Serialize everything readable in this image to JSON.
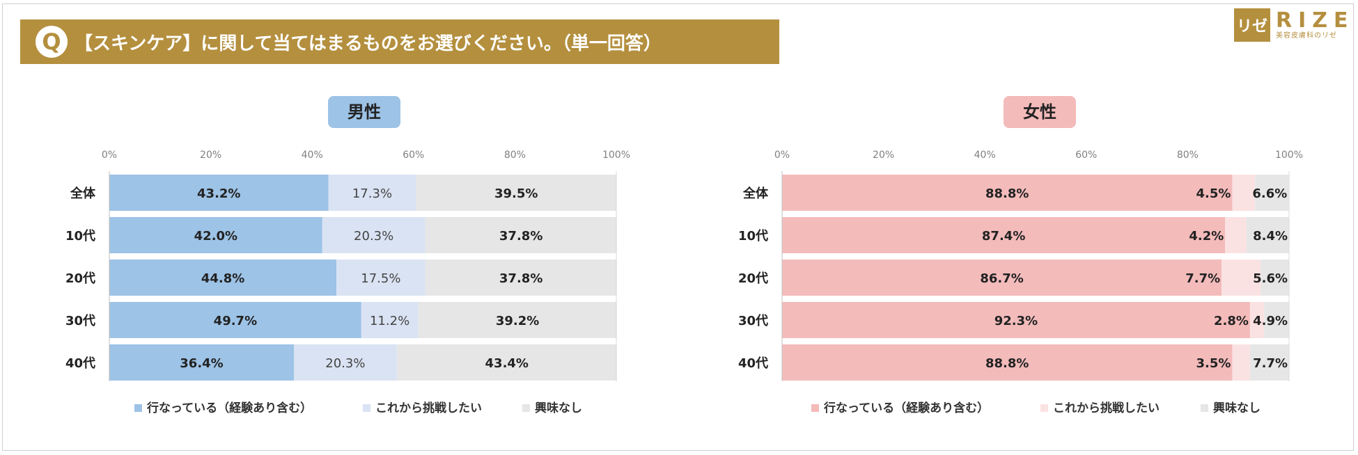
{
  "header": {
    "q_badge": "Q",
    "title": "【スキンケア】に関して当てはまるものをお選びください。（単一回答）"
  },
  "logo": {
    "mark": "リゼ",
    "name": "RIZE",
    "subtitle": "美容皮膚科のリゼ"
  },
  "colors": {
    "gold": "#b48f3e",
    "male": [
      "#9dc3e6",
      "#dae3f3",
      "#e6e6e6"
    ],
    "female": [
      "#f4bbbb",
      "#fbe2e2",
      "#e6e6e6"
    ],
    "male_title_bg": "#9dc3e6",
    "female_title_bg": "#f4bbbb"
  },
  "chart_data": [
    {
      "type": "bar",
      "orientation": "horizontal",
      "stacked": "percent",
      "title": "男性",
      "categories": [
        "全体",
        "10代",
        "20代",
        "30代",
        "40代"
      ],
      "series": [
        {
          "name": "行なっている（経験あり含む）",
          "values": [
            43.2,
            42.0,
            44.8,
            49.7,
            36.4
          ]
        },
        {
          "name": "これから挑戦したい",
          "values": [
            17.3,
            20.3,
            17.5,
            11.2,
            20.3
          ]
        },
        {
          "name": "興味なし",
          "values": [
            39.5,
            37.8,
            37.8,
            39.2,
            43.4
          ]
        }
      ],
      "xticks": [
        "0%",
        "20%",
        "40%",
        "60%",
        "80%",
        "100%"
      ],
      "xlim": [
        0,
        100
      ],
      "legend": "bottom"
    },
    {
      "type": "bar",
      "orientation": "horizontal",
      "stacked": "percent",
      "title": "女性",
      "categories": [
        "全体",
        "10代",
        "20代",
        "30代",
        "40代"
      ],
      "series": [
        {
          "name": "行なっている（経験あり含む）",
          "values": [
            88.8,
            87.4,
            86.7,
            92.3,
            88.8
          ]
        },
        {
          "name": "これから挑戦したい",
          "values": [
            4.5,
            4.2,
            7.7,
            2.8,
            3.5
          ]
        },
        {
          "name": "興味なし",
          "values": [
            6.6,
            8.4,
            5.6,
            4.9,
            7.7
          ]
        }
      ],
      "xticks": [
        "0%",
        "20%",
        "40%",
        "60%",
        "80%",
        "100%"
      ],
      "xlim": [
        0,
        100
      ],
      "legend": "bottom"
    }
  ]
}
